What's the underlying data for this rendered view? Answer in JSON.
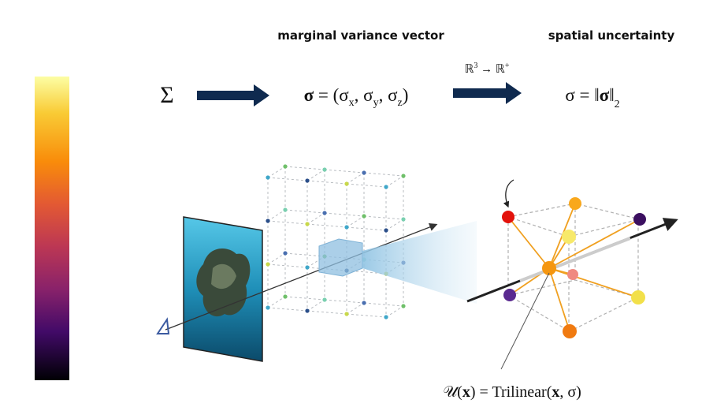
{
  "header": {
    "marginal_variance": "marginal variance vector",
    "spatial_uncertainty": "spatial uncertainty"
  },
  "formulas": {
    "covariance": "Σ",
    "sigma_vector": [
      "σ",
      " = (σ",
      "x",
      ", σ",
      "y",
      ", σ",
      "z",
      ")"
    ],
    "mapping": [
      "ℝ",
      "3",
      " → ℝ",
      "+"
    ],
    "norm": [
      "σ = ‖",
      "σ",
      "‖",
      "2"
    ],
    "trilinear": [
      "𝒰(",
      "x",
      ") = Trilinear(",
      "x",
      ", σ)"
    ]
  }
}
